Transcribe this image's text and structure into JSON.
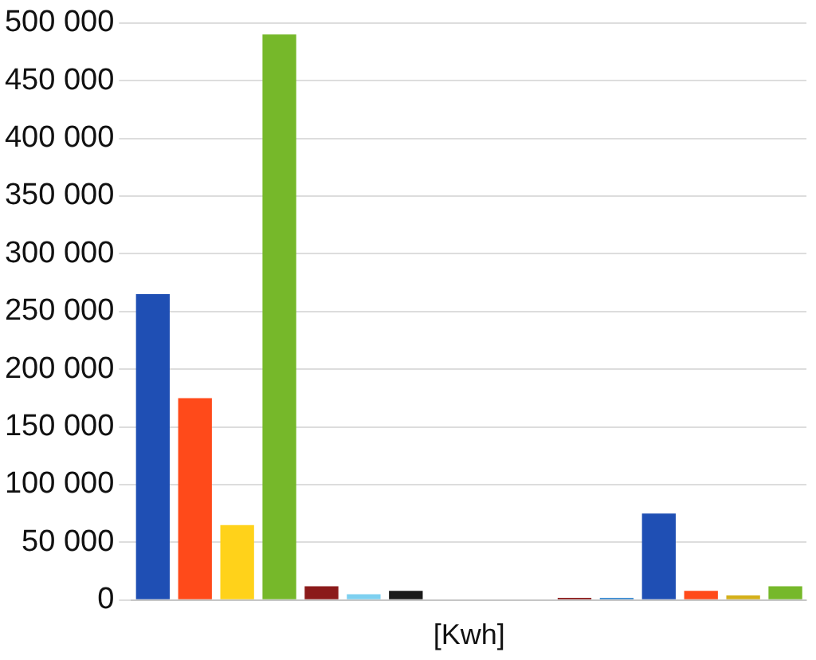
{
  "chart_data": {
    "type": "bar",
    "xlabel": "[Kwh]",
    "categories": [
      null,
      null,
      null,
      null,
      null,
      null,
      null,
      null,
      null,
      null,
      null,
      null,
      null,
      null,
      null,
      null
    ],
    "values": [
      265000,
      175000,
      65000,
      490000,
      12000,
      5000,
      8000,
      null,
      null,
      null,
      2000,
      2000,
      75000,
      8000,
      4000,
      12000
    ],
    "colors": [
      "#1f4fb4",
      "#ff4a1a",
      "#ffd21a",
      "#76b82a",
      "#8b1a1a",
      "#7ed0f0",
      "#1a1a1a",
      "#000000",
      "#000000",
      "#000000",
      "#8b1a1a",
      "#3a8ad0",
      "#1f4fb4",
      "#ff4a1a",
      "#d4b01a",
      "#76b82a"
    ],
    "ylim": [
      0,
      500000
    ],
    "yticks": [
      {
        "value": 0,
        "label": "0"
      },
      {
        "value": 50000,
        "label": "50 000"
      },
      {
        "value": 100000,
        "label": "100 000"
      },
      {
        "value": 150000,
        "label": "150 000"
      },
      {
        "value": 200000,
        "label": "200 000"
      },
      {
        "value": 250000,
        "label": "250 000"
      },
      {
        "value": 300000,
        "label": "300 000"
      },
      {
        "value": 350000,
        "label": "350 000"
      },
      {
        "value": 400000,
        "label": "400 000"
      },
      {
        "value": 450000,
        "label": "450 000"
      },
      {
        "value": 500000,
        "label": "500 000"
      }
    ],
    "grid": "y",
    "legend": false
  }
}
